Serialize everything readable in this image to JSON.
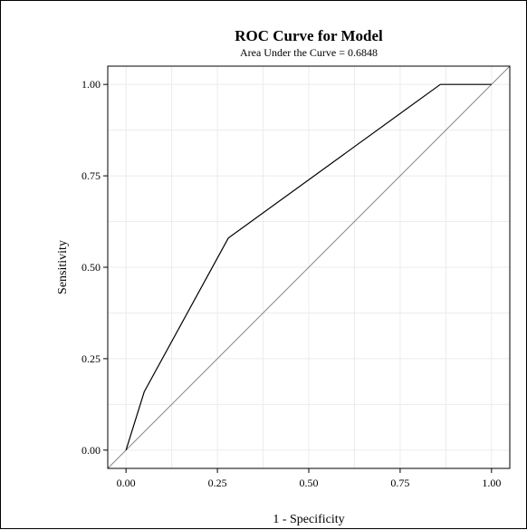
{
  "chart_data": {
    "type": "line",
    "title": "ROC Curve for Model",
    "subtitle": "Area Under the Curve = 0.6848",
    "xlabel": "1 - Specificity",
    "ylabel": "Sensitivity",
    "xlim": [
      -0.05,
      1.05
    ],
    "ylim": [
      -0.05,
      1.05
    ],
    "x_ticks": [
      "0.00",
      "0.25",
      "0.50",
      "0.75",
      "1.00"
    ],
    "y_ticks": [
      "0.00",
      "0.25",
      "0.50",
      "0.75",
      "1.00"
    ],
    "grid": true,
    "series": [
      {
        "points": [
          {
            "x": 0.0,
            "y": 0.0
          },
          {
            "x": 0.05,
            "y": 0.16
          },
          {
            "x": 0.28,
            "y": 0.58
          },
          {
            "x": 0.86,
            "y": 1.0
          },
          {
            "x": 1.0,
            "y": 1.0
          }
        ]
      }
    ],
    "reference_line": {
      "x": [
        -0.05,
        1.05
      ],
      "y": [
        -0.05,
        1.05
      ]
    },
    "colors": {
      "curve": "#000000",
      "reference": "#888888",
      "grid": "#ececec",
      "border": "#000000"
    }
  }
}
